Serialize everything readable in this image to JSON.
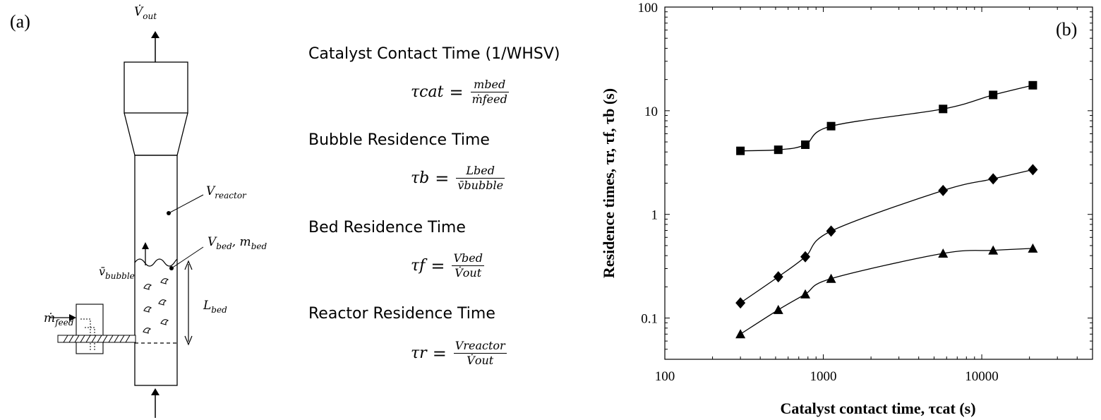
{
  "panel_a": {
    "label": "(a)",
    "diagram": {
      "v_out": "V̇out",
      "v_reactor": "Vreactor",
      "v_bed_m_bed": "Vbed, mbed",
      "v_bubble": "v̄bubble",
      "m_feed": "ṁfeed",
      "l_bed": "Lbed"
    },
    "definitions": [
      {
        "title": "Catalyst Contact Time (1/WHSV)",
        "lhs": "τcat",
        "num": "mbed",
        "den": "ṁfeed"
      },
      {
        "title": "Bubble Residence Time",
        "lhs": "τb",
        "num": "Lbed",
        "den": "v̄bubble"
      },
      {
        "title": "Bed Residence Time",
        "lhs": "τf",
        "num": "Vbed",
        "den": "V̇out"
      },
      {
        "title": "Reactor Residence Time",
        "lhs": "τr",
        "num": "Vreactor",
        "den": "V̇out"
      }
    ]
  },
  "panel_b": {
    "label": "(b)"
  },
  "chart_data": {
    "type": "line",
    "xlabel": "Catalyst contact time, τcat (s)",
    "ylabel": "Residence times, τr, τf, τb (s)",
    "x_scale": "log",
    "y_scale": "log",
    "xlim": [
      100,
      50000
    ],
    "ylim": [
      0.04,
      100
    ],
    "x_ticks": [
      100,
      1000,
      10000
    ],
    "x_tick_labels": [
      "100",
      "1000",
      "10000"
    ],
    "y_ticks": [
      0.1,
      1,
      10,
      100
    ],
    "y_tick_labels": [
      "0.1",
      "1",
      "10",
      "100"
    ],
    "grid": false,
    "series": [
      {
        "marker": "square",
        "x": [
          300,
          520,
          770,
          1120,
          5700,
          11800,
          21000
        ],
        "y": [
          4.1,
          4.2,
          4.7,
          7.1,
          10.4,
          14.2,
          17.6
        ]
      },
      {
        "marker": "diamond",
        "x": [
          300,
          520,
          770,
          1120,
          5700,
          11800,
          21000
        ],
        "y": [
          0.14,
          0.25,
          0.39,
          0.69,
          1.7,
          2.2,
          2.7
        ]
      },
      {
        "marker": "triangle",
        "x": [
          300,
          520,
          770,
          1120,
          5700,
          11800,
          21000
        ],
        "y": [
          0.07,
          0.12,
          0.17,
          0.24,
          0.42,
          0.45,
          0.47
        ]
      }
    ]
  }
}
